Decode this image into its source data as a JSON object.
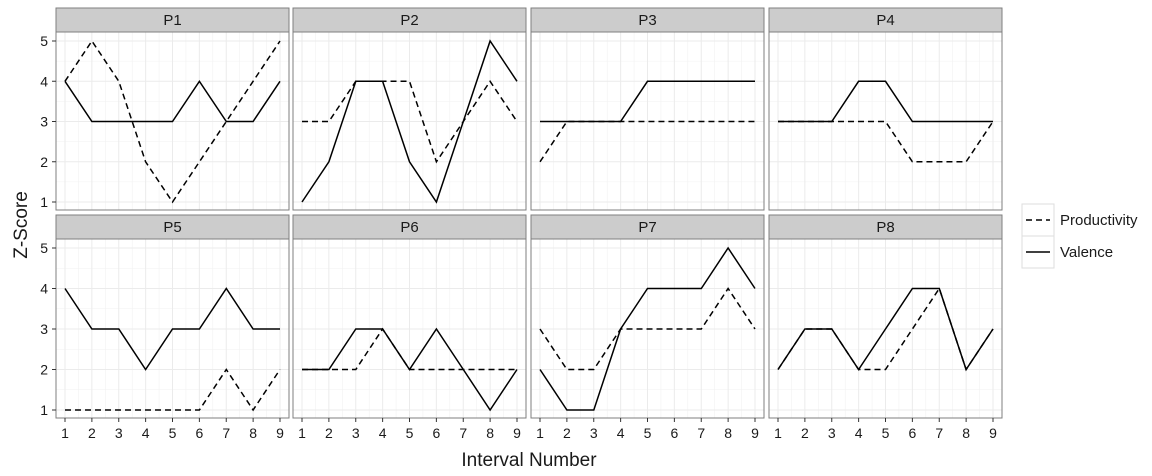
{
  "chart_data": {
    "type": "line",
    "facet_grid": {
      "rows": 2,
      "cols": 4
    },
    "x": [
      1,
      2,
      3,
      4,
      5,
      6,
      7,
      8,
      9
    ],
    "xticks": [
      "1",
      "2",
      "3",
      "4",
      "5",
      "6",
      "7",
      "8",
      "9"
    ],
    "yticks": [
      "1",
      "2",
      "3",
      "4",
      "5"
    ],
    "xlim": [
      1,
      9
    ],
    "ylim": [
      1,
      5
    ],
    "xlabel": "Interval Number",
    "ylabel": "Z-Score",
    "grid": true,
    "legend": {
      "placement": "right",
      "entries": [
        {
          "name": "Productivity",
          "style": "dashed"
        },
        {
          "name": "Valence",
          "style": "solid"
        }
      ]
    },
    "colors": {
      "line": "#000000",
      "panel_bg": "#ffffff",
      "grid": "#ebebeb",
      "strip_bg": "#cccccc",
      "border": "#7f7f7f"
    },
    "panels": [
      {
        "title": "P1",
        "series": [
          {
            "name": "Productivity",
            "values": [
              4,
              5,
              4,
              2,
              1,
              2,
              3,
              4,
              5
            ]
          },
          {
            "name": "Valence",
            "values": [
              4,
              3,
              3,
              3,
              3,
              4,
              3,
              3,
              4
            ]
          }
        ]
      },
      {
        "title": "P2",
        "series": [
          {
            "name": "Productivity",
            "values": [
              3,
              3,
              4,
              4,
              4,
              2,
              3,
              4,
              3
            ]
          },
          {
            "name": "Valence",
            "values": [
              1,
              2,
              4,
              4,
              2,
              1,
              3,
              5,
              4
            ]
          }
        ]
      },
      {
        "title": "P3",
        "series": [
          {
            "name": "Productivity",
            "values": [
              2,
              3,
              3,
              3,
              3,
              3,
              3,
              3,
              3
            ]
          },
          {
            "name": "Valence",
            "values": [
              3,
              3,
              3,
              3,
              4,
              4,
              4,
              4,
              4
            ]
          }
        ]
      },
      {
        "title": "P4",
        "series": [
          {
            "name": "Productivity",
            "values": [
              3,
              3,
              3,
              3,
              3,
              2,
              2,
              2,
              3
            ]
          },
          {
            "name": "Valence",
            "values": [
              3,
              3,
              3,
              4,
              4,
              3,
              3,
              3,
              3
            ]
          }
        ]
      },
      {
        "title": "P5",
        "series": [
          {
            "name": "Productivity",
            "values": [
              1,
              1,
              1,
              1,
              1,
              1,
              2,
              1,
              2
            ]
          },
          {
            "name": "Valence",
            "values": [
              4,
              3,
              3,
              2,
              3,
              3,
              4,
              3,
              3
            ]
          }
        ]
      },
      {
        "title": "P6",
        "series": [
          {
            "name": "Productivity",
            "values": [
              2,
              2,
              2,
              3,
              2,
              2,
              2,
              2,
              2
            ]
          },
          {
            "name": "Valence",
            "values": [
              2,
              2,
              3,
              3,
              2,
              3,
              2,
              1,
              2
            ]
          }
        ]
      },
      {
        "title": "P7",
        "series": [
          {
            "name": "Productivity",
            "values": [
              3,
              2,
              2,
              3,
              3,
              3,
              3,
              4,
              3
            ]
          },
          {
            "name": "Valence",
            "values": [
              2,
              1,
              1,
              3,
              4,
              4,
              4,
              5,
              4
            ]
          }
        ]
      },
      {
        "title": "P8",
        "series": [
          {
            "name": "Productivity",
            "values": [
              2,
              3,
              3,
              2,
              2,
              3,
              4,
              2,
              3
            ]
          },
          {
            "name": "Valence",
            "values": [
              2,
              3,
              3,
              2,
              3,
              4,
              4,
              2,
              3
            ]
          }
        ]
      }
    ]
  }
}
